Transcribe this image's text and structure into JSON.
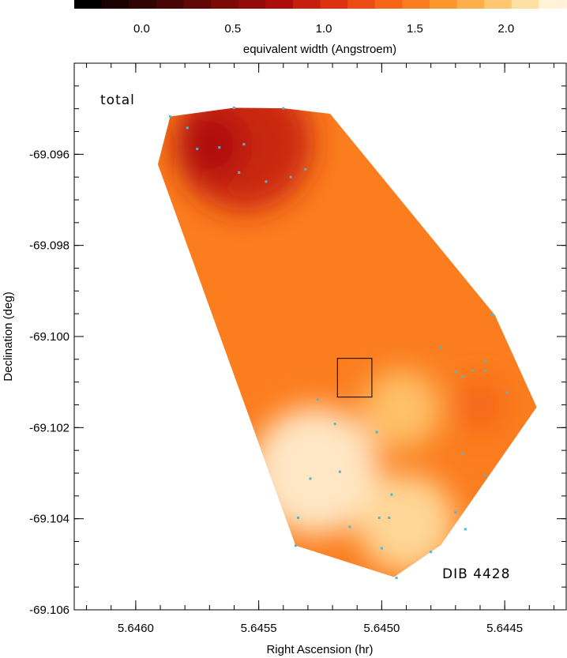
{
  "chart_data": {
    "type": "heatmap",
    "colorbar": {
      "label": "equivalent width (Angstroem)",
      "tick_labels": [
        "0.0",
        "0.5",
        "1.0",
        "1.5",
        "2.0"
      ],
      "tick_values": [
        0.0,
        0.5,
        1.0,
        1.5,
        2.0
      ],
      "range": [
        -0.37,
        2.33
      ],
      "colors": [
        "#000000",
        "#1a0202",
        "#310404",
        "#480505",
        "#610707",
        "#7a0908",
        "#930b09",
        "#ac0f0b",
        "#c5200e",
        "#dc3210",
        "#ec4b13",
        "#f56417",
        "#fb7d1e",
        "#fe962e",
        "#ffaf4a",
        "#ffc870",
        "#ffe0a3",
        "#fff2d6"
      ]
    },
    "xlabel": "Right Ascension (hr)",
    "ylabel": "Declination (deg)",
    "xlim": [
      5.64625,
      5.64425
    ],
    "ylim": [
      -69.106,
      -69.094
    ],
    "x_tick_labels": [
      "5.6460",
      "5.6455",
      "5.6450",
      "5.6445"
    ],
    "x_ticks": [
      5.646,
      5.6455,
      5.645,
      5.6445
    ],
    "y_tick_labels": [
      "-69.096",
      "-69.098",
      "-69.100",
      "-69.102",
      "-69.104",
      "-69.106"
    ],
    "y_ticks": [
      -69.096,
      -69.098,
      -69.1,
      -69.102,
      -69.104,
      -69.106
    ],
    "annotations": [
      "total",
      "DIB 4428"
    ],
    "region_outline": [
      [
        5.64586,
        -69.09517
      ],
      [
        5.6456,
        -69.09498
      ],
      [
        5.6454,
        -69.09499
      ],
      [
        5.64521,
        -69.09511
      ],
      [
        5.64454,
        -69.09953
      ],
      [
        5.64437,
        -69.10155
      ],
      [
        5.64476,
        -69.10458
      ],
      [
        5.64495,
        -69.10528
      ],
      [
        5.64535,
        -69.10459
      ],
      [
        5.64591,
        -69.09622
      ]
    ],
    "region_fill_level": 1.55,
    "shading_features": [
      {
        "x": 5.64556,
        "y": -69.09575,
        "radius": 0.00028,
        "value": 0.95
      },
      {
        "x": 5.6457,
        "y": -69.0958,
        "radius": 0.00014,
        "value": 0.8
      },
      {
        "x": 5.6448,
        "y": -69.0946,
        "radius": 0.0001,
        "value": 1.2
      },
      {
        "x": 5.64527,
        "y": -69.10295,
        "radius": 0.00026,
        "value": 2.25
      },
      {
        "x": 5.6449,
        "y": -69.1041,
        "radius": 0.0002,
        "value": 2.15
      },
      {
        "x": 5.64492,
        "y": -69.1016,
        "radius": 0.00016,
        "value": 1.95
      },
      {
        "x": 5.6446,
        "y": -69.1015,
        "radius": 0.0001,
        "value": 1.4
      }
    ],
    "box": {
      "x1": 5.64518,
      "x2": 5.64504,
      "y1": -69.10048,
      "y2": -69.10133
    },
    "points": [
      [
        5.64586,
        -69.09517
      ],
      [
        5.64579,
        -69.09542
      ],
      [
        5.64575,
        -69.09588
      ],
      [
        5.64566,
        -69.09585
      ],
      [
        5.6456,
        -69.09498
      ],
      [
        5.64558,
        -69.0964
      ],
      [
        5.64556,
        -69.09578
      ],
      [
        5.64547,
        -69.0966
      ],
      [
        5.64537,
        -69.0965
      ],
      [
        5.64531,
        -69.09633
      ],
      [
        5.6454,
        -69.09499
      ],
      [
        5.64455,
        -69.09953
      ],
      [
        5.64458,
        -69.10054
      ],
      [
        5.64463,
        -69.10075
      ],
      [
        5.64476,
        -69.10025
      ],
      [
        5.6447,
        -69.10078
      ],
      [
        5.64467,
        -69.10088
      ],
      [
        5.64458,
        -69.10075
      ],
      [
        5.64449,
        -69.10123
      ],
      [
        5.64526,
        -69.10138
      ],
      [
        5.64519,
        -69.10192
      ],
      [
        5.64502,
        -69.1021
      ],
      [
        5.64458,
        -69.10305
      ],
      [
        5.64467,
        -69.10258
      ],
      [
        5.64529,
        -69.10312
      ],
      [
        5.64517,
        -69.10297
      ],
      [
        5.64496,
        -69.10347
      ],
      [
        5.64534,
        -69.10398
      ],
      [
        5.64501,
        -69.10398
      ],
      [
        5.64497,
        -69.10398
      ],
      [
        5.64513,
        -69.10418
      ],
      [
        5.645,
        -69.10465
      ],
      [
        5.6447,
        -69.10386
      ],
      [
        5.64466,
        -69.10423
      ],
      [
        5.6448,
        -69.10473
      ],
      [
        5.64494,
        -69.1053
      ],
      [
        5.64535,
        -69.10459
      ]
    ]
  }
}
